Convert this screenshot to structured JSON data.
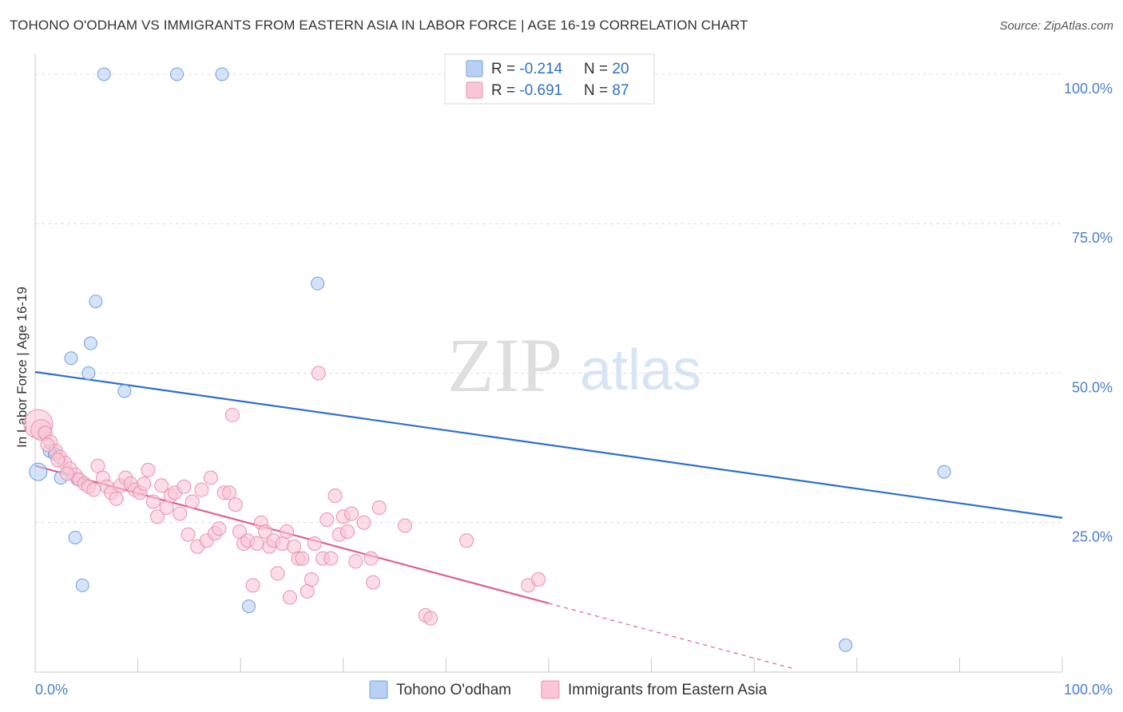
{
  "header": {
    "title": "TOHONO O'ODHAM VS IMMIGRANTS FROM EASTERN ASIA IN LABOR FORCE | AGE 16-19 CORRELATION CHART",
    "source": "Source: ZipAtlas.com"
  },
  "watermark": {
    "zip": "ZIP",
    "atlas": "atlas"
  },
  "chart_data": {
    "type": "scatter",
    "ylabel": "In Labor Force | Age 16-19",
    "x_tick_labels": [
      "0.0%",
      "100.0%"
    ],
    "y_tick_labels": [
      "100.0%",
      "75.0%",
      "50.0%",
      "25.0%"
    ],
    "y_ticks": [
      100,
      75,
      50,
      25
    ],
    "xlim": [
      0,
      100
    ],
    "ylim": [
      0,
      102
    ],
    "grid": true,
    "legend_position": "bottom-center",
    "stats_box": [
      {
        "r_label": "R = ",
        "r_value": "-0.214",
        "n_label": "N = ",
        "n_value": "20"
      },
      {
        "r_label": "R = ",
        "r_value": "-0.691",
        "n_label": "N = ",
        "n_value": "87"
      }
    ],
    "series": [
      {
        "name": "Tohono O'odham",
        "color": "#6fa0e0",
        "fill": "#b8d1f3",
        "line_color": "#2d6fce",
        "trend": {
          "x0": 0,
          "y0": 50.2,
          "x1": 100,
          "y1": 25.8
        },
        "points": [
          [
            6.7,
            100
          ],
          [
            13.8,
            100
          ],
          [
            18.2,
            100
          ],
          [
            27.5,
            65
          ],
          [
            5.9,
            62
          ],
          [
            5.4,
            55
          ],
          [
            3.5,
            52.5
          ],
          [
            5.2,
            50
          ],
          [
            8.7,
            47
          ],
          [
            0.3,
            33.5
          ],
          [
            0.8,
            40
          ],
          [
            1.4,
            37
          ],
          [
            1.9,
            36.5
          ],
          [
            2.5,
            32.5
          ],
          [
            4.1,
            32.3
          ],
          [
            3.9,
            22.5
          ],
          [
            4.6,
            14.5
          ],
          [
            20.8,
            11
          ],
          [
            88.5,
            33.5
          ],
          [
            78.9,
            4.5
          ]
        ]
      },
      {
        "name": "Immigrants from Eastern Asia",
        "color": "#ec8fb0",
        "fill": "#f8c6d6",
        "line_color": "#e0608a",
        "trend": {
          "x0": 0,
          "y0": 34.5,
          "x1": 50,
          "y1": 11.5
        },
        "trend_dashed": {
          "x0": 50,
          "y0": 11.5,
          "x1": 74,
          "y1": 0.5
        },
        "points": [
          [
            0.3,
            41.5
          ],
          [
            0.6,
            40.5
          ],
          [
            1.0,
            40
          ],
          [
            1.5,
            38.5
          ],
          [
            2.0,
            37
          ],
          [
            2.4,
            36
          ],
          [
            2.9,
            35
          ],
          [
            3.4,
            34
          ],
          [
            3.9,
            33
          ],
          [
            4.3,
            32.2
          ],
          [
            4.8,
            31.5
          ],
          [
            5.2,
            31
          ],
          [
            5.7,
            30.5
          ],
          [
            6.1,
            34.5
          ],
          [
            6.6,
            32.5
          ],
          [
            7.0,
            31
          ],
          [
            7.4,
            30
          ],
          [
            7.9,
            29
          ],
          [
            8.3,
            31.2
          ],
          [
            8.8,
            32.5
          ],
          [
            9.3,
            31.5
          ],
          [
            9.7,
            30.5
          ],
          [
            10.2,
            30
          ],
          [
            10.6,
            31.5
          ],
          [
            11.0,
            33.8
          ],
          [
            11.5,
            28.5
          ],
          [
            11.9,
            26
          ],
          [
            12.3,
            31.2
          ],
          [
            12.8,
            27.5
          ],
          [
            13.2,
            29.5
          ],
          [
            13.6,
            30
          ],
          [
            14.1,
            26.5
          ],
          [
            14.5,
            31
          ],
          [
            14.9,
            23
          ],
          [
            15.3,
            28.5
          ],
          [
            15.8,
            21
          ],
          [
            16.2,
            30.5
          ],
          [
            16.7,
            22
          ],
          [
            17.1,
            32.5
          ],
          [
            17.5,
            23.2
          ],
          [
            17.9,
            24
          ],
          [
            18.4,
            30
          ],
          [
            18.9,
            30
          ],
          [
            19.2,
            43
          ],
          [
            19.5,
            28
          ],
          [
            19.9,
            23.5
          ],
          [
            20.3,
            21.5
          ],
          [
            20.7,
            22
          ],
          [
            21.2,
            14.5
          ],
          [
            21.6,
            21.5
          ],
          [
            22.0,
            25
          ],
          [
            22.4,
            23.5
          ],
          [
            22.8,
            21
          ],
          [
            23.2,
            22
          ],
          [
            23.6,
            16.5
          ],
          [
            24.1,
            21.5
          ],
          [
            24.5,
            23.5
          ],
          [
            24.8,
            12.5
          ],
          [
            25.2,
            21
          ],
          [
            25.6,
            19
          ],
          [
            26.0,
            19
          ],
          [
            26.5,
            13.5
          ],
          [
            26.9,
            15.5
          ],
          [
            27.2,
            21.5
          ],
          [
            27.6,
            50
          ],
          [
            28.0,
            19
          ],
          [
            28.4,
            25.5
          ],
          [
            28.8,
            19
          ],
          [
            29.2,
            29.5
          ],
          [
            29.6,
            23
          ],
          [
            30.0,
            26
          ],
          [
            30.4,
            23.5
          ],
          [
            30.8,
            26.5
          ],
          [
            31.2,
            18.5
          ],
          [
            32.0,
            25
          ],
          [
            32.7,
            19
          ],
          [
            32.9,
            15
          ],
          [
            33.5,
            27.5
          ],
          [
            36.0,
            24.5
          ],
          [
            38.0,
            9.5
          ],
          [
            38.5,
            9
          ],
          [
            42.0,
            22
          ],
          [
            48.0,
            14.5
          ],
          [
            49.0,
            15.5
          ],
          [
            1.2,
            38
          ],
          [
            2.2,
            35.5
          ],
          [
            3.1,
            33.2
          ]
        ]
      }
    ]
  }
}
